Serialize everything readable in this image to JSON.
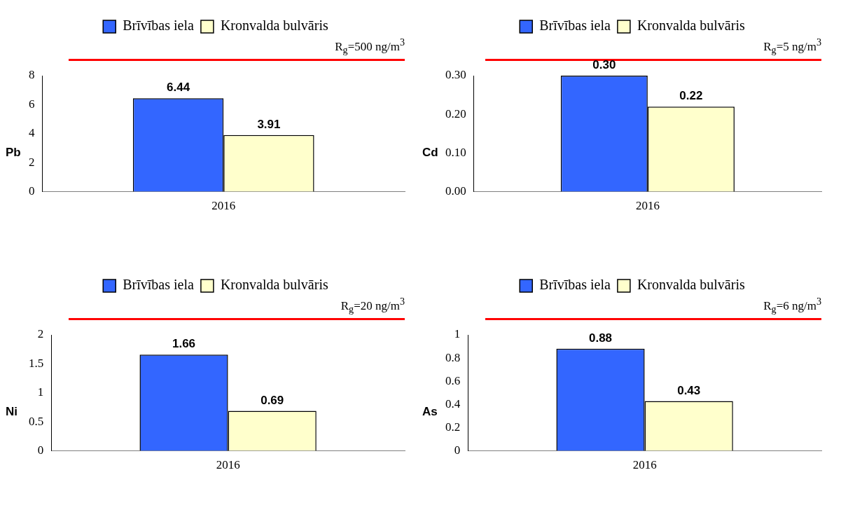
{
  "chart_data": [
    {
      "type": "bar",
      "ylabel": "Pb",
      "categories": [
        "2016"
      ],
      "series": [
        {
          "name": "Brīvības iela",
          "color": "#3366ff",
          "values": [
            6.44
          ],
          "value_labels": [
            "6.44"
          ]
        },
        {
          "name": "Kronvalda bulvāris",
          "color": "#ffffcc",
          "values": [
            3.91
          ],
          "value_labels": [
            "3.91"
          ]
        }
      ],
      "ylim": [
        0,
        8
      ],
      "yticks": [
        0,
        2,
        4,
        6,
        8
      ],
      "grid": false,
      "legend": "top",
      "annotations": [
        "R$_{g}$=500 ng/m$^{3}$"
      ]
    },
    {
      "type": "bar",
      "ylabel": "Cd",
      "categories": [
        "2016"
      ],
      "series": [
        {
          "name": "Brīvības iela",
          "color": "#3366ff",
          "values": [
            0.3
          ],
          "value_labels": [
            "0.30"
          ]
        },
        {
          "name": "Kronvalda bulvāris",
          "color": "#ffffcc",
          "values": [
            0.22
          ],
          "value_labels": [
            "0.22"
          ]
        }
      ],
      "ylim": [
        0,
        0.3
      ],
      "yticks": [
        {
          "value": 0,
          "label": "0.00"
        },
        {
          "value": 0.1,
          "label": "0.10"
        },
        {
          "value": 0.2,
          "label": "0.20"
        },
        {
          "value": 0.3,
          "label": "0.30"
        }
      ],
      "grid": false,
      "legend": "top",
      "annotations": [
        "R$_{g}$=5 ng/m$^{3}$"
      ]
    },
    {
      "type": "bar",
      "ylabel": "Ni",
      "categories": [
        "2016"
      ],
      "series": [
        {
          "name": "Brīvības iela",
          "color": "#3366ff",
          "values": [
            1.66
          ],
          "value_labels": [
            "1.66"
          ]
        },
        {
          "name": "Kronvalda bulvāris",
          "color": "#ffffcc",
          "values": [
            0.69
          ],
          "value_labels": [
            "0.69"
          ]
        }
      ],
      "ylim": [
        0,
        2
      ],
      "yticks": [
        0,
        0.5,
        1,
        1.5,
        2
      ],
      "grid": false,
      "legend": "top",
      "annotations": [
        "R$_{g}$=20 ng/m$^{3}$"
      ]
    },
    {
      "type": "bar",
      "ylabel": "As",
      "categories": [
        "2016"
      ],
      "series": [
        {
          "name": "Brīvības iela",
          "color": "#3366ff",
          "values": [
            0.88
          ],
          "value_labels": [
            "0.88"
          ]
        },
        {
          "name": "Kronvalda bulvāris",
          "color": "#ffffcc",
          "values": [
            0.43
          ],
          "value_labels": [
            "0.43"
          ]
        }
      ],
      "ylim": [
        0,
        1
      ],
      "yticks": [
        0,
        0.2,
        0.4,
        0.6,
        0.8,
        1
      ],
      "grid": false,
      "legend": "top",
      "annotations": [
        "R$_{g}$=6 ng/m$^{3}$"
      ]
    }
  ]
}
